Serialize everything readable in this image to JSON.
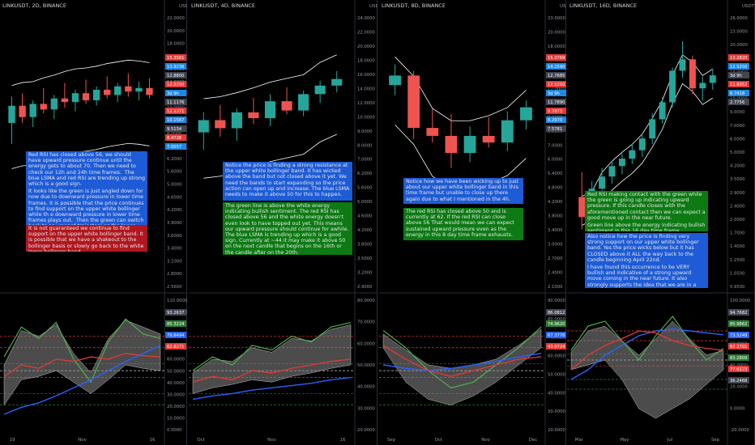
{
  "panels": [
    {
      "title": "LINKUSDT, 2D, BINANCE",
      "price_axis": [
        "22.0000",
        "20.0000",
        "18.0000",
        "16.0000",
        "15.0000",
        "14.0000",
        "12.0000",
        "10.0000",
        "9.0000",
        "8.0000",
        "7.0000",
        "6.2000",
        "5.6000",
        "5.0000",
        "4.6000",
        "4.2000",
        "3.9000",
        "3.6000",
        "3.4000",
        "3.1000",
        "2.8000",
        "2.5600"
      ],
      "price_tags": [
        "15.3561",
        "13.9236",
        "12.8800",
        "12.5250",
        "3d 9h",
        "11.1176",
        "12.2371",
        "10.1567",
        "9.5134",
        "8.4736",
        "7.0557"
      ],
      "rsi_axis": [
        "110.0000",
        "100.0000",
        "90.0000",
        "80.0000",
        "70.0000",
        "60.0000",
        "50.0000",
        "40.0000",
        "30.0000",
        "20.0000",
        "10.0000",
        "0.0000"
      ],
      "rsi_tags": [
        "93.2637",
        "85.3224",
        "79.6494",
        "62.8271"
      ],
      "time_axis": [
        "19",
        "Nov",
        "16"
      ],
      "annotations": [
        {
          "color": "blue",
          "lines": [
            "Red RSI has closed above 56, we should have upward pressure continue until the energy gets to about 70. Then we need to check our 12h and 24h time frames.  The blue LSMA and red RSI are trending up strong which is a good sign.",
            "It looks like the green is just angled down for now due to downward pressure in lower time frames. It is possible that the price continues to find support on the upper white bollinger while th e downward pressure in lower time frames plays out.  Then the green can switch back to an upward trajectory as the lower time frames"
          ]
        },
        {
          "color": "red",
          "lines": [
            "It is not guaranteed we continue to find support on the upper white bollinger band. It is possible that we have a shakeout to the bollinger basis or slowly go back to the white lower bollinger band."
          ]
        }
      ]
    },
    {
      "title": "LINKUSDT, 4D, BINANCE",
      "price_axis": [
        "24.0000",
        "22.0000",
        "20.0000",
        "18.0000",
        "16.0000",
        "14.0000",
        "12.0000",
        "10.0000",
        "9.0000",
        "8.0000",
        "7.0000",
        "6.2000",
        "5.6000",
        "5.0000",
        "4.6000",
        "4.2000",
        "3.8000",
        "3.5000",
        "3.2000",
        "2.9000"
      ],
      "price_tags": [],
      "rsi_axis": [
        "80.0000",
        "70.0000",
        "60.0000",
        "50.0000",
        "40.0000",
        "30.0000",
        "20.0000"
      ],
      "rsi_tags": [],
      "time_axis": [
        "Oct",
        "Nov",
        "16"
      ],
      "annotations": [
        {
          "color": "blue",
          "lines": [
            "Notice the price is finding a strong resistance at the upper white bollinger band. It has wicked above the band but not closed above it yet. We need the bands to start expanding so the price action can open up and increase. The blue LSMA needs to make it above 50 for this to happen."
          ]
        },
        {
          "color": "green",
          "lines": [
            "The green line is above the white energy indicating bullish sentiment. The red RSI has closed above 56 and the white energy doesn't even look to have topped out yet. This means our upward pressure should continue for awhile. The blue LSMA is trending up which is a good sign. Currently at ~44 it may make it above 50 on the next candle that begins on the 16th or the candle after on the 20th."
          ]
        }
      ]
    },
    {
      "title": "LINKUSDT, 8D, BINANCE",
      "price_axis": [
        "23.0000",
        "20.0000",
        "18.0000",
        "16.0000",
        "14.0000",
        "12.0000",
        "10.0000",
        "9.0000",
        "8.0000",
        "7.0000",
        "6.0000",
        "5.4000",
        "4.8000",
        "4.2000",
        "3.8000",
        "3.4000",
        "3.0000",
        "2.7000",
        "2.4000",
        "2.1000"
      ],
      "price_tags": [
        "15.3769",
        "14.2590",
        "12.7685",
        "12.5250",
        "3d 9h",
        "11.7890",
        "9.7873",
        "8.2970",
        "7.5781"
      ],
      "rsi_axis": [
        "90.0000",
        "80.0000",
        "70.0000",
        "60.0000",
        "50.0000",
        "40.0000",
        "30.0000",
        "20.0000"
      ],
      "rsi_tags": [
        "86.0812",
        "74.9620",
        "67.3776",
        "43.9724"
      ],
      "time_axis": [
        "Sep",
        "Oct",
        "Nov",
        "Dec"
      ],
      "annotations": [
        {
          "color": "blue",
          "lines": [
            "Notice how we have been wicking up to just about our upper white bollinger band in this time frame but unable to close up there again due to what I mentioned in the 4h."
          ]
        },
        {
          "color": "green",
          "lines": [
            "The red RSI has closed above 50 and is currently at 62. If the red RSI can close above 56 That would mean we can expect sustained upward pressure even as the energy in this 8 day time frame exhausts."
          ]
        }
      ]
    },
    {
      "title": "LINKUSDT, 16D, BINANCE",
      "price_axis": [
        "26.0000",
        "23.0000",
        "20.0000",
        "17.0000",
        "14.0000",
        "12.0000",
        "10.0000",
        "9.0000",
        "7.0000",
        "6.0000",
        "5.0000",
        "4.2000",
        "3.5000",
        "2.9000",
        "2.4000",
        "2.0000",
        "1.7000",
        "1.4000",
        "1.2500",
        "1.0500",
        "0.9500"
      ],
      "price_tags": [
        "13.2820",
        "12.5250",
        "3d 9h",
        "11.8052",
        "6.7418",
        "2.7756"
      ],
      "rsi_axis": [
        "100.0000",
        "80.0000",
        "60.0000",
        "40.0000",
        "20.0000",
        "0.0000",
        "-20.0000"
      ],
      "rsi_tags": [
        "94.7682",
        "85.9862",
        "73.5249",
        "62.2701",
        "83.2809",
        "77.6223",
        "36.2468"
      ],
      "time_axis": [
        "Mar",
        "May",
        "Jul",
        "Sep"
      ],
      "annotations": [
        {
          "color": "green",
          "lines": [
            "Red RSI making contact with the green while the green is going up indicating upward pressure. If this candle closes with the aforementioned contact then we can expect a good move up in the near future.",
            "Green line above the energy indicating bullish sentiment in this 16 day time frame."
          ]
        },
        {
          "color": "blue",
          "lines": [
            "Also notice how the price is finding very strong support on our upper white bollinger band. Yes the price wicks below but it has CLOSED above it ALL the way back to the candle beginning April 22nd.",
            "I have found this occurrence to be VERY bullish and indicative of a strong upward move coming in the near future. It also strongly supports the idea that we are in a LONG term bull trend."
          ]
        }
      ]
    }
  ],
  "colors": {
    "up": "#26a69a",
    "down": "#ef5350",
    "band": "#ffffff",
    "rsi": "#e53935",
    "lsma": "#2962ff",
    "energy_line": "#4caf50",
    "energy_fill": "#8a8a8a",
    "grid_red": "#e53935",
    "grid_green": "#2e7d32",
    "grid_white": "#cccccc"
  },
  "chart_data": [
    {
      "type": "candlestick",
      "title": "LINKUSDT, 2D, BINANCE",
      "ylabel": "USDT",
      "candles": [
        {
          "o": 11.0,
          "h": 12.4,
          "l": 10.0,
          "c": 11.9
        },
        {
          "o": 11.9,
          "h": 12.6,
          "l": 11.0,
          "c": 11.3
        },
        {
          "o": 11.3,
          "h": 12.2,
          "l": 10.8,
          "c": 12.0
        },
        {
          "o": 12.0,
          "h": 12.9,
          "l": 11.5,
          "c": 11.7
        },
        {
          "o": 11.7,
          "h": 12.5,
          "l": 11.2,
          "c": 12.3
        },
        {
          "o": 12.3,
          "h": 13.2,
          "l": 11.8,
          "c": 12.1
        },
        {
          "o": 12.1,
          "h": 12.8,
          "l": 11.6,
          "c": 12.6
        },
        {
          "o": 12.6,
          "h": 13.4,
          "l": 12.0,
          "c": 12.2
        },
        {
          "o": 12.2,
          "h": 13.0,
          "l": 11.9,
          "c": 12.8
        },
        {
          "o": 12.8,
          "h": 13.6,
          "l": 12.3,
          "c": 12.5
        },
        {
          "o": 12.5,
          "h": 13.2,
          "l": 12.1,
          "c": 13.0
        },
        {
          "o": 13.0,
          "h": 13.8,
          "l": 12.4,
          "c": 12.7
        },
        {
          "o": 12.7,
          "h": 13.3,
          "l": 12.2,
          "c": 12.9
        },
        {
          "o": 12.9,
          "h": 13.5,
          "l": 12.3,
          "c": 12.5
        }
      ],
      "rsi": [
        45,
        55,
        52,
        60,
        58,
        62,
        60,
        65,
        63,
        62
      ],
      "lsma": [
        12,
        18,
        22,
        28,
        35,
        42,
        50,
        58,
        65,
        72
      ],
      "energy": [
        62,
        88,
        78,
        92,
        60,
        40,
        75,
        95,
        82,
        78
      ],
      "energy_fill_top": [
        55,
        85,
        80,
        90,
        65,
        48,
        78,
        94,
        88,
        82
      ],
      "energy_fill_bottom": [
        20,
        42,
        45,
        50,
        40,
        30,
        42,
        55,
        52,
        50
      ]
    },
    {
      "type": "candlestick",
      "title": "LINKUSDT, 4D, BINANCE",
      "ylabel": "USDT",
      "candles": [
        {
          "o": 10.0,
          "h": 11.0,
          "l": 9.2,
          "c": 10.6
        },
        {
          "o": 10.6,
          "h": 11.4,
          "l": 9.8,
          "c": 10.2
        },
        {
          "o": 10.2,
          "h": 11.2,
          "l": 9.6,
          "c": 11.0
        },
        {
          "o": 11.0,
          "h": 11.8,
          "l": 10.4,
          "c": 10.7
        },
        {
          "o": 10.7,
          "h": 12.0,
          "l": 10.3,
          "c": 11.6
        },
        {
          "o": 11.6,
          "h": 12.4,
          "l": 10.9,
          "c": 11.1
        },
        {
          "o": 11.1,
          "h": 12.2,
          "l": 10.8,
          "c": 12.0
        },
        {
          "o": 12.0,
          "h": 12.8,
          "l": 11.5,
          "c": 12.5
        },
        {
          "o": 12.5,
          "h": 13.4,
          "l": 12.1,
          "c": 12.9
        }
      ],
      "rsi": [
        40,
        45,
        42,
        50,
        48,
        52,
        55,
        58,
        60
      ],
      "lsma": [
        25,
        28,
        30,
        33,
        35,
        37,
        39,
        42,
        44
      ],
      "energy": [
        50,
        62,
        55,
        72,
        68,
        80,
        75,
        88,
        92
      ],
      "energy_fill_top": [
        48,
        60,
        58,
        70,
        66,
        78,
        76,
        86,
        90
      ],
      "energy_fill_bottom": [
        30,
        35,
        38,
        42,
        40,
        45,
        48,
        52,
        55
      ]
    },
    {
      "type": "candlestick",
      "title": "LINKUSDT, 8D, BINANCE",
      "ylabel": "USDT",
      "candles": [
        {
          "o": 14.6,
          "h": 16.4,
          "l": 13.8,
          "c": 15.4
        },
        {
          "o": 15.4,
          "h": 15.8,
          "l": 10.8,
          "c": 11.5
        },
        {
          "o": 11.5,
          "h": 12.8,
          "l": 10.6,
          "c": 11.0
        },
        {
          "o": 11.0,
          "h": 12.4,
          "l": 9.2,
          "c": 10.0
        },
        {
          "o": 10.0,
          "h": 11.6,
          "l": 9.5,
          "c": 11.0
        },
        {
          "o": 11.0,
          "h": 12.2,
          "l": 10.3,
          "c": 10.6
        },
        {
          "o": 10.6,
          "h": 12.6,
          "l": 10.1,
          "c": 12.0
        },
        {
          "o": 12.0,
          "h": 13.4,
          "l": 11.4,
          "c": 12.9
        }
      ],
      "rsi": [
        72,
        60,
        50,
        45,
        50,
        55,
        60,
        62
      ],
      "lsma": [
        55,
        52,
        50,
        52,
        55,
        58,
        62,
        65
      ],
      "energy": [
        85,
        70,
        50,
        35,
        40,
        55,
        70,
        88
      ],
      "energy_fill_top": [
        82,
        68,
        55,
        52,
        55,
        60,
        72,
        86
      ],
      "energy_fill_bottom": [
        70,
        40,
        25,
        20,
        28,
        40,
        55,
        70
      ]
    },
    {
      "type": "candlestick",
      "title": "LINKUSDT, 16D, BINANCE",
      "ylabel": "USDT",
      "candles": [
        {
          "o": 2.6,
          "h": 3.6,
          "l": 1.7,
          "c": 2.0
        },
        {
          "o": 2.0,
          "h": 3.2,
          "l": 1.9,
          "c": 2.9
        },
        {
          "o": 2.9,
          "h": 3.8,
          "l": 2.6,
          "c": 3.4
        },
        {
          "o": 3.4,
          "h": 4.2,
          "l": 3.1,
          "c": 3.9
        },
        {
          "o": 3.9,
          "h": 4.6,
          "l": 3.5,
          "c": 4.3
        },
        {
          "o": 4.3,
          "h": 5.2,
          "l": 4.0,
          "c": 4.8
        },
        {
          "o": 4.8,
          "h": 6.0,
          "l": 4.4,
          "c": 5.6
        },
        {
          "o": 5.6,
          "h": 7.8,
          "l": 5.2,
          "c": 7.2
        },
        {
          "o": 7.2,
          "h": 9.6,
          "l": 6.8,
          "c": 9.0
        },
        {
          "o": 9.0,
          "h": 14.2,
          "l": 8.4,
          "c": 13.6
        },
        {
          "o": 13.6,
          "h": 20.0,
          "l": 12.4,
          "c": 15.8
        },
        {
          "o": 15.8,
          "h": 16.6,
          "l": 10.0,
          "c": 10.8
        },
        {
          "o": 10.8,
          "h": 12.6,
          "l": 9.2,
          "c": 11.6
        },
        {
          "o": 11.6,
          "h": 14.0,
          "l": 10.6,
          "c": 12.8
        }
      ],
      "rsi": [
        40,
        55,
        65,
        72,
        80,
        78,
        70,
        65,
        62,
        60
      ],
      "lsma": [
        30,
        40,
        55,
        65,
        75,
        80,
        82,
        80,
        78,
        76
      ],
      "energy": [
        60,
        85,
        90,
        70,
        50,
        75,
        95,
        70,
        50,
        62
      ],
      "energy_fill_top": [
        58,
        80,
        85,
        70,
        55,
        72,
        90,
        72,
        55,
        60
      ],
      "energy_fill_bottom": [
        40,
        45,
        50,
        30,
        0,
        -10,
        0,
        10,
        25,
        40
      ]
    }
  ]
}
